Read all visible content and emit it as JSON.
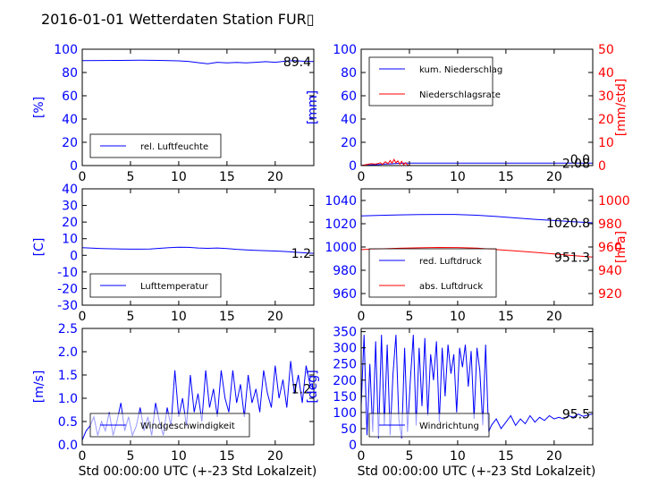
{
  "title": "2016-01-01 Wetterdaten Station FUR▯",
  "xlabel": "Std 00:00:00 UTC (+-23 Std Lokalzeit)",
  "chart_data": [
    {
      "type": "line",
      "ylabel": "[%]",
      "xlim": [
        0,
        24
      ],
      "ylim": [
        0,
        100
      ],
      "xticks": [
        0,
        5,
        10,
        15,
        20
      ],
      "yticks": [
        0,
        20,
        40,
        60,
        80,
        100
      ],
      "last_value": "89.4",
      "legend": "lower-left",
      "series": [
        {
          "name": "rel. Luftfeuchte",
          "color": "#0000ff",
          "axis": "left",
          "x": [
            0,
            2,
            4,
            6,
            8,
            10,
            11,
            12,
            13,
            14,
            15,
            16,
            17,
            18,
            19,
            20,
            21,
            22,
            23,
            24
          ],
          "y": [
            90.2,
            90.3,
            90.4,
            90.5,
            90.4,
            90.0,
            89.5,
            88.5,
            87.5,
            88.8,
            88.2,
            88.6,
            88.2,
            88.8,
            89.3,
            88.8,
            89.7,
            90.2,
            89.6,
            89.4
          ]
        }
      ]
    },
    {
      "type": "line",
      "ylabel": "[mm]",
      "ylabel_right": "[mm/std]",
      "xlim": [
        0,
        24
      ],
      "ylim": [
        0,
        100
      ],
      "ylim_right": [
        0,
        50
      ],
      "xticks": [
        0,
        5,
        10,
        15,
        20
      ],
      "yticks": [
        0,
        20,
        40,
        60,
        80,
        100
      ],
      "yticks_right": [
        0,
        10,
        20,
        30,
        40,
        50
      ],
      "last_value": "2.08",
      "last_value_right": "0.0",
      "legend": "top-left",
      "series": [
        {
          "name": "kum. Niederschlag",
          "color": "#0000ff",
          "axis": "left",
          "x": [
            0,
            0.6,
            1,
            1.5,
            2,
            2.5,
            3,
            3.5,
            4,
            4.3,
            4.6,
            5,
            24
          ],
          "y": [
            0.2,
            0.3,
            0.5,
            0.8,
            1.0,
            1.3,
            1.5,
            1.7,
            1.9,
            2.0,
            2.08,
            2.08,
            2.08
          ]
        },
        {
          "name": "Niederschlagsrate",
          "color": "#ff0000",
          "axis": "right",
          "x": [
            0,
            0.5,
            1,
            1.5,
            2,
            2.2,
            2.5,
            2.8,
            3,
            3.2,
            3.4,
            3.6,
            3.8,
            4.0,
            4.2,
            4.4,
            4.6,
            4.8,
            5
          ],
          "y": [
            0,
            0.4,
            0.8,
            0.6,
            1.2,
            0.5,
            1.6,
            0.8,
            2.2,
            1.0,
            2.6,
            1.2,
            2.0,
            0.6,
            1.8,
            0.4,
            1.2,
            0.3,
            0
          ]
        }
      ]
    },
    {
      "type": "line",
      "ylabel": "[C]",
      "xlim": [
        0,
        24
      ],
      "ylim": [
        -30,
        40
      ],
      "xticks": [
        0,
        5,
        10,
        15,
        20
      ],
      "yticks": [
        -30,
        -20,
        -10,
        0,
        10,
        20,
        30,
        40
      ],
      "last_value": "1.2",
      "legend": "lower-left",
      "series": [
        {
          "name": "Lufttemperatur",
          "color": "#0000ff",
          "axis": "left",
          "x": [
            0,
            1,
            2,
            3,
            4,
            5,
            6,
            7,
            8,
            9,
            10,
            11,
            12,
            13,
            14,
            15,
            16,
            17,
            18,
            19,
            20,
            21,
            22,
            23,
            24
          ],
          "y": [
            4.6,
            4.3,
            4.1,
            3.9,
            3.8,
            3.7,
            3.7,
            3.8,
            4.2,
            4.6,
            4.9,
            4.8,
            4.4,
            4.2,
            4.4,
            4.1,
            3.6,
            3.3,
            3.0,
            2.8,
            2.6,
            2.3,
            1.9,
            1.5,
            1.2
          ]
        }
      ]
    },
    {
      "type": "line",
      "ylim": [
        950,
        1050
      ],
      "ylim_right": [
        910,
        1010
      ],
      "xlim": [
        0,
        24
      ],
      "xticks": [
        0,
        5,
        10,
        15,
        20
      ],
      "yticks": [
        960,
        980,
        1000,
        1020,
        1040
      ],
      "yticks_right": [
        920,
        940,
        960,
        980,
        1000
      ],
      "ylabel_right": "[hPa]",
      "last_value": "1020.8",
      "last_value_right": "951.3",
      "legend": "lower-left",
      "series": [
        {
          "name": "red. Luftdruck",
          "color": "#0000ff",
          "axis": "left",
          "x": [
            0,
            2,
            4,
            6,
            8,
            10,
            12,
            14,
            16,
            18,
            20,
            22,
            24
          ],
          "y": [
            1026.8,
            1027.2,
            1027.6,
            1027.9,
            1028.0,
            1027.9,
            1027.3,
            1026.2,
            1025.0,
            1023.8,
            1022.8,
            1021.8,
            1020.8
          ]
        },
        {
          "name": "abs. Luftdruck",
          "color": "#ff0000",
          "axis": "right",
          "x": [
            0,
            2,
            4,
            6,
            8,
            10,
            12,
            14,
            16,
            18,
            20,
            22,
            24
          ],
          "y": [
            957.8,
            958.4,
            958.9,
            959.3,
            959.6,
            959.5,
            959.0,
            957.8,
            956.6,
            955.4,
            954.0,
            952.6,
            951.3
          ]
        }
      ]
    },
    {
      "type": "line",
      "ylabel": "[m/s]",
      "xlim": [
        0,
        24
      ],
      "ylim": [
        0,
        2.5
      ],
      "xticks": [
        0,
        5,
        10,
        15,
        20
      ],
      "yticks": [
        0.0,
        0.5,
        1.0,
        1.5,
        2.0,
        2.5
      ],
      "last_value": "1.2",
      "legend": "lower-left",
      "series": [
        {
          "name": "Windgeschwindigkeit",
          "color": "#0000ff",
          "axis": "left",
          "x": [
            0,
            0.4,
            0.8,
            1.2,
            1.6,
            2.0,
            2.4,
            2.8,
            3.2,
            3.6,
            4.0,
            4.4,
            4.8,
            5.2,
            5.6,
            6.0,
            6.4,
            6.8,
            7.2,
            7.6,
            8.0,
            8.4,
            8.8,
            9.2,
            9.6,
            10.0,
            10.4,
            10.8,
            11.2,
            11.6,
            12.0,
            12.4,
            12.8,
            13.2,
            13.6,
            14.0,
            14.4,
            14.8,
            15.2,
            15.6,
            16.0,
            16.4,
            16.8,
            17.2,
            17.6,
            18.0,
            18.4,
            18.8,
            19.2,
            19.6,
            20.0,
            20.4,
            20.8,
            21.2,
            21.6,
            22.0,
            22.4,
            22.8,
            23.2,
            23.6,
            24.0
          ],
          "y": [
            0.1,
            0.3,
            0.4,
            0.6,
            0.2,
            0.5,
            0.3,
            0.7,
            0.2,
            0.5,
            0.9,
            0.3,
            0.6,
            0.2,
            0.4,
            0.8,
            0.3,
            0.6,
            0.2,
            0.9,
            0.5,
            0.2,
            0.8,
            0.4,
            1.6,
            0.6,
            1.0,
            0.4,
            1.5,
            0.7,
            1.1,
            0.5,
            1.6,
            0.8,
            1.2,
            0.6,
            1.6,
            1.0,
            0.7,
            1.6,
            0.9,
            1.3,
            0.6,
            1.5,
            0.9,
            1.2,
            0.7,
            1.6,
            1.1,
            0.8,
            1.7,
            1.0,
            1.4,
            0.8,
            1.8,
            1.1,
            1.5,
            0.9,
            1.7,
            1.3,
            1.2
          ]
        }
      ]
    },
    {
      "type": "line",
      "ylabel": "[deg]",
      "xlim": [
        0,
        24
      ],
      "ylim": [
        0,
        360
      ],
      "xticks": [
        0,
        5,
        10,
        15,
        20
      ],
      "yticks": [
        0,
        50,
        100,
        150,
        200,
        250,
        300,
        350
      ],
      "last_value": "95.5",
      "legend": "lower-left",
      "series": [
        {
          "name": "Windrichtung",
          "color": "#0000ff",
          "axis": "left",
          "x": [
            0,
            0.3,
            0.6,
            0.9,
            1.2,
            1.5,
            1.8,
            2.1,
            2.4,
            2.7,
            3.0,
            3.3,
            3.6,
            3.9,
            4.2,
            4.5,
            4.8,
            5.1,
            5.4,
            5.7,
            6.0,
            6.3,
            6.6,
            6.9,
            7.2,
            7.5,
            7.8,
            8.1,
            8.4,
            8.7,
            9.0,
            9.3,
            9.6,
            9.9,
            10.2,
            10.5,
            10.8,
            11.1,
            11.4,
            11.7,
            12.0,
            12.3,
            12.6,
            12.9,
            13.2,
            13.5,
            14.0,
            14.5,
            15.0,
            15.5,
            16.0,
            16.5,
            17.0,
            17.5,
            18.0,
            18.5,
            19.0,
            19.5,
            20.0,
            20.5,
            21.0,
            21.5,
            22.0,
            22.5,
            23.0,
            23.5,
            24.0
          ],
          "y": [
            120,
            340,
            30,
            250,
            40,
            320,
            20,
            340,
            60,
            310,
            30,
            220,
            340,
            80,
            20,
            300,
            40,
            200,
            340,
            60,
            300,
            120,
            330,
            90,
            280,
            200,
            320,
            70,
            300,
            150,
            310,
            220,
            280,
            100,
            300,
            240,
            310,
            180,
            290,
            80,
            300,
            230,
            60,
            310,
            40,
            60,
            80,
            50,
            70,
            90,
            60,
            80,
            65,
            90,
            70,
            85,
            75,
            90,
            80,
            85,
            80,
            90,
            85,
            95,
            88,
            92,
            95.5
          ]
        }
      ]
    }
  ]
}
